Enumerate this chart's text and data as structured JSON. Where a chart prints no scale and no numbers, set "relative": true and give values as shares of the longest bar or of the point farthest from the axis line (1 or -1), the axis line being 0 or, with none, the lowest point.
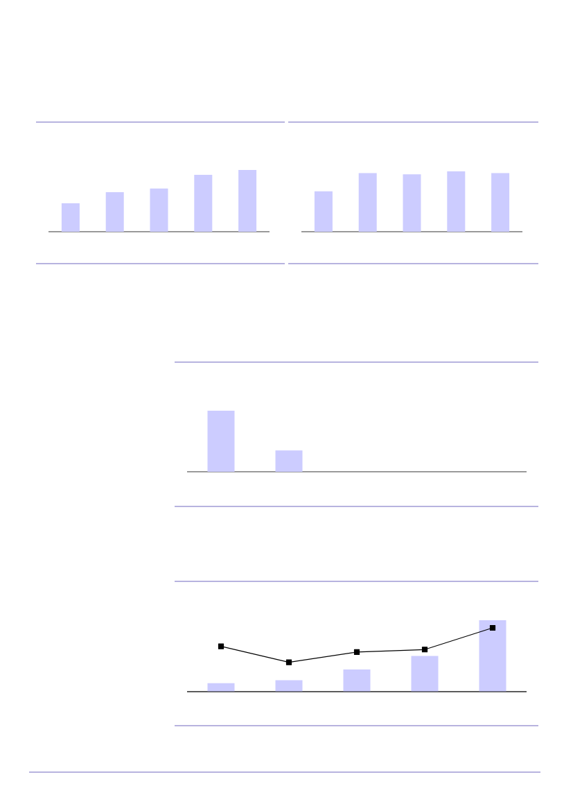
{
  "chart_data": [
    {
      "type": "bar",
      "relative": true,
      "categories": [
        null,
        null,
        null,
        null,
        null
      ],
      "series": [
        {
          "color": "#ccccff",
          "values": [
            0.46,
            0.64,
            0.7,
            0.92,
            1
          ]
        }
      ]
    },
    {
      "type": "bar",
      "relative": true,
      "categories": [
        null,
        null,
        null,
        null,
        null
      ],
      "series": [
        {
          "color": "#ccccff",
          "values": [
            0.67,
            0.97,
            0.95,
            1,
            0.97
          ]
        }
      ]
    },
    {
      "type": "bar",
      "relative": true,
      "categories": [
        null,
        null
      ],
      "series": [
        {
          "color": "#ccccff",
          "values": [
            1,
            0.35
          ]
        }
      ]
    },
    {
      "type": "bar",
      "relative": true,
      "categories": [
        null,
        null,
        null,
        null,
        null
      ],
      "series": [
        {
          "color": "#ccccff",
          "values": [
            0.12,
            0.16,
            0.31,
            0.5,
            1
          ]
        }
      ]
    },
    {
      "type": "line",
      "relative": true,
      "categories": [
        null,
        null,
        null,
        null,
        null
      ],
      "series": [
        {
          "color": "#000000",
          "marker": "square",
          "values": [
            0.71,
            0.46,
            0.62,
            0.66,
            1
          ]
        }
      ]
    }
  ]
}
